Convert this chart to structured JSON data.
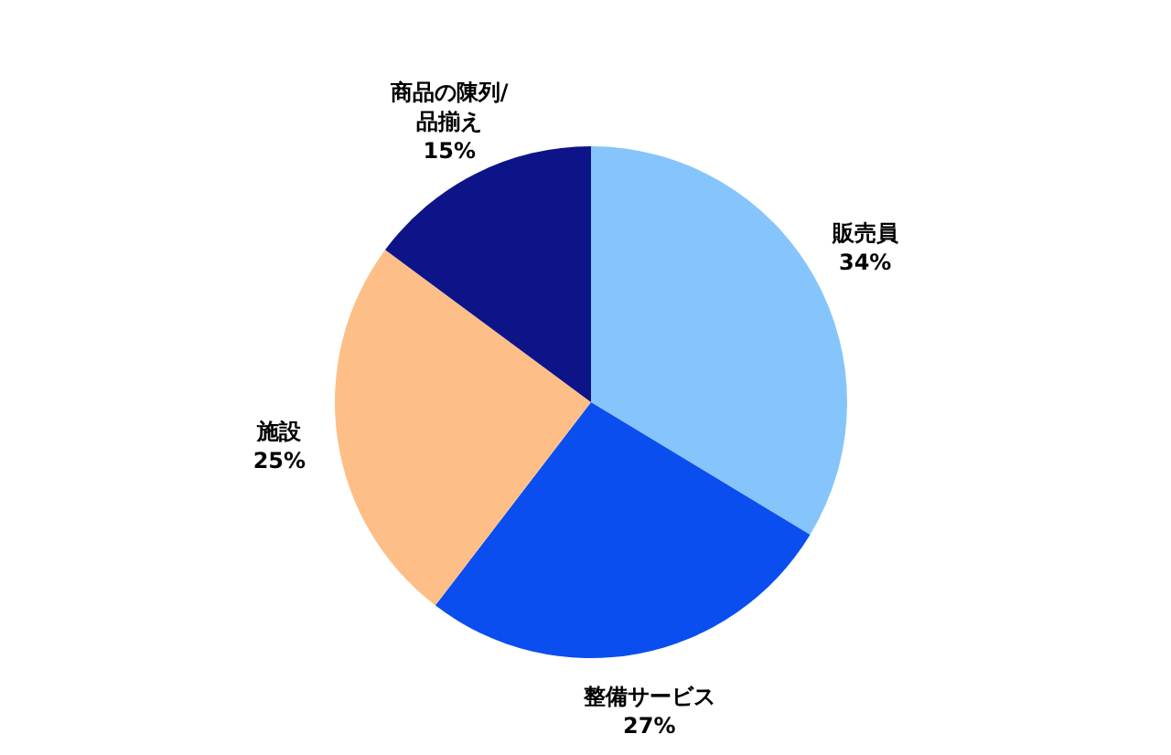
{
  "chart_data": {
    "type": "pie",
    "categories": [
      "販売員",
      "整備サービス",
      "施設",
      "商品の陳列/品揃え"
    ],
    "values": [
      34,
      27,
      25,
      15
    ],
    "value_labels": [
      "34%",
      "27%",
      "25%",
      "15%"
    ],
    "colors": [
      "#85c5fb",
      "#0a4ef0",
      "#fdbf87",
      "#0c1488"
    ],
    "legend": false
  }
}
